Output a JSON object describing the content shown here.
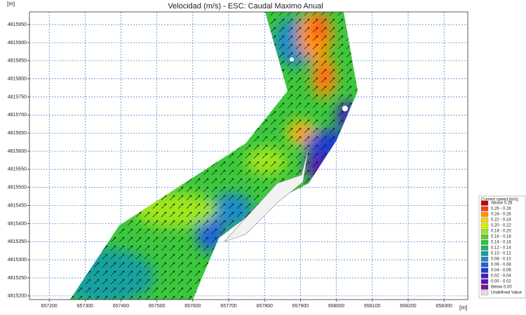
{
  "chart_data": {
    "type": "contour-map",
    "title": "Velocidad (m/s) - ESC: Caudal Maximo Anual",
    "x_label": "[m]",
    "y_label": "[m]",
    "xlim": [
      657145,
      658366
    ],
    "ylim": [
      4815190,
      4815985
    ],
    "xticks": [
      657200,
      657300,
      657400,
      657500,
      657600,
      657700,
      657800,
      657900,
      658000,
      658100,
      658200,
      658300
    ],
    "yticks": [
      4815200,
      4815250,
      4815300,
      4815350,
      4815400,
      4815450,
      4815500,
      4815550,
      4815600,
      4815650,
      4815700,
      4815750,
      4815800,
      4815850,
      4815900,
      4815950
    ],
    "grid": true,
    "legend": {
      "title": "Current speed [m/s]",
      "position": "right",
      "items": [
        {
          "label": "Above 0.28",
          "color": "#c80000"
        },
        {
          "label": "0.26 - 0.28",
          "color": "#ff3c1e"
        },
        {
          "label": "0.24 - 0.26",
          "color": "#ff9600"
        },
        {
          "label": "0.22 - 0.24",
          "color": "#ffd200"
        },
        {
          "label": "0.20 - 0.22",
          "color": "#dcf000"
        },
        {
          "label": "0.18 - 0.20",
          "color": "#a0e61e"
        },
        {
          "label": "0.16 - 0.18",
          "color": "#5ad21e"
        },
        {
          "label": "0.14 - 0.16",
          "color": "#28c83c"
        },
        {
          "label": "0.12 - 0.14",
          "color": "#1eb46e"
        },
        {
          "label": "0.10 - 0.12",
          "color": "#14a0a0"
        },
        {
          "label": "0.08 - 0.10",
          "color": "#1e8cc8"
        },
        {
          "label": "0.06 - 0.08",
          "color": "#1e64dc"
        },
        {
          "label": "0.04 - 0.06",
          "color": "#1e3cd2"
        },
        {
          "label": "0.02 - 0.04",
          "color": "#3c1ec8"
        },
        {
          "label": "0.00 - 0.02",
          "color": "#5a14b4"
        },
        {
          "label": "Below 0.00",
          "color": "#7a1496"
        },
        {
          "label": "Undefined Value",
          "color": "#e0e0e0"
        }
      ]
    }
  }
}
